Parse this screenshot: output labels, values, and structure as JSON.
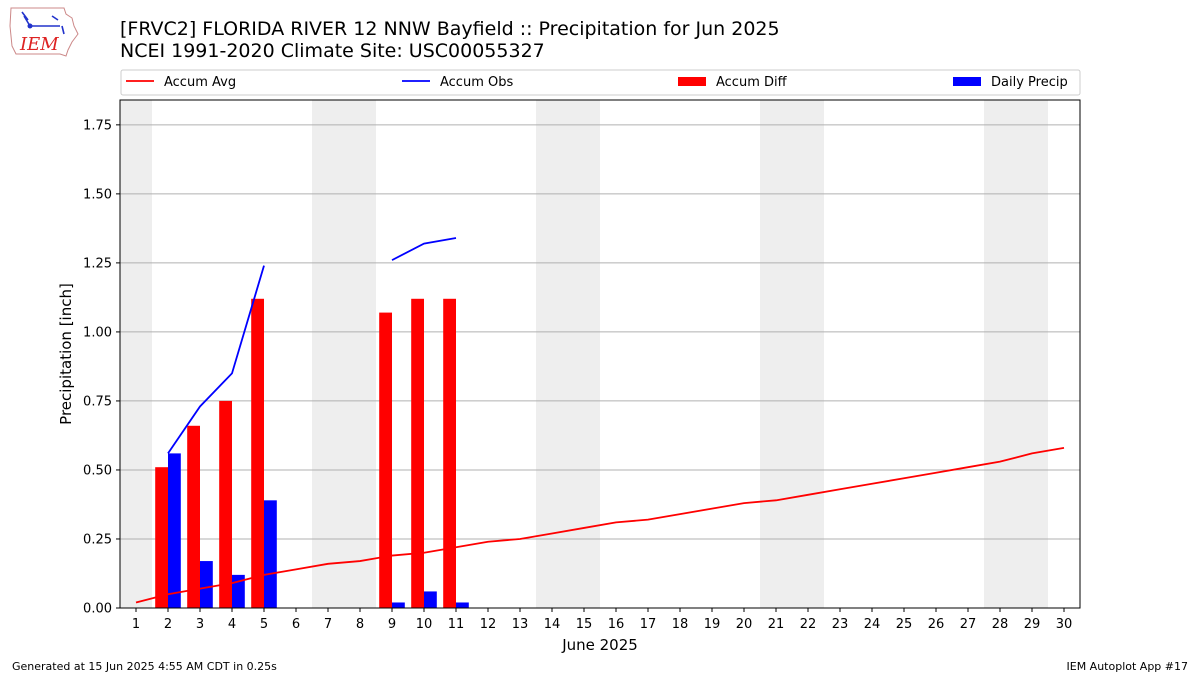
{
  "title_line1": "[FRVC2] FLORIDA RIVER 12 NNW Bayfield :: Precipitation for Jun 2025",
  "title_line2": "NCEI 1991-2020 Climate Site: USC00055327",
  "logo_text": "IEM",
  "footer_left": "Generated at 15 Jun 2025 4:55 AM CDT in 0.25s",
  "footer_right": "IEM Autoplot App #17",
  "colors": {
    "accum_avg": "#ff0000",
    "accum_obs": "#0000ff",
    "accum_diff": "#ff0000",
    "daily_precip": "#0000ff",
    "weekend_band": "#eeeeee",
    "grid": "#b0b0b0"
  },
  "chart_data": {
    "type": "bar",
    "xlabel": "June 2025",
    "ylabel": "Precipitation [inch]",
    "xlim": [
      0.5,
      30.5
    ],
    "ylim": [
      0,
      1.84
    ],
    "yticks": [
      0.0,
      0.25,
      0.5,
      0.75,
      1.0,
      1.25,
      1.5,
      1.75
    ],
    "ytick_labels": [
      "0.00",
      "0.25",
      "0.50",
      "0.75",
      "1.00",
      "1.25",
      "1.50",
      "1.75"
    ],
    "days": [
      1,
      2,
      3,
      4,
      5,
      6,
      7,
      8,
      9,
      10,
      11,
      12,
      13,
      14,
      15,
      16,
      17,
      18,
      19,
      20,
      21,
      22,
      23,
      24,
      25,
      26,
      27,
      28,
      29,
      30
    ],
    "weekend_days": [
      1,
      7,
      8,
      14,
      15,
      21,
      22,
      28,
      29
    ],
    "grid": "horizontal",
    "legend_placement": "top",
    "series": [
      {
        "name": "Accum Avg",
        "kind": "line",
        "x": [
          1,
          2,
          3,
          4,
          5,
          6,
          7,
          8,
          9,
          10,
          11,
          12,
          13,
          14,
          15,
          16,
          17,
          18,
          19,
          20,
          21,
          22,
          23,
          24,
          25,
          26,
          27,
          28,
          29,
          30
        ],
        "values": [
          0.02,
          0.05,
          0.07,
          0.09,
          0.12,
          0.14,
          0.16,
          0.17,
          0.19,
          0.2,
          0.22,
          0.24,
          0.25,
          0.27,
          0.29,
          0.31,
          0.32,
          0.34,
          0.36,
          0.38,
          0.39,
          0.41,
          0.43,
          0.45,
          0.47,
          0.49,
          0.51,
          0.53,
          0.56,
          0.58
        ]
      },
      {
        "name": "Accum Obs",
        "kind": "line",
        "segments": [
          {
            "x": [
              2,
              3,
              4,
              5
            ],
            "values": [
              0.56,
              0.73,
              0.85,
              1.24
            ]
          },
          {
            "x": [
              9,
              10,
              11
            ],
            "values": [
              1.26,
              1.32,
              1.34
            ]
          }
        ]
      },
      {
        "name": "Accum Diff",
        "kind": "bar",
        "offset": -0.2,
        "x": [
          2,
          3,
          4,
          5,
          9,
          10,
          11
        ],
        "values": [
          0.51,
          0.66,
          0.75,
          1.12,
          1.07,
          1.12,
          1.12
        ]
      },
      {
        "name": "Daily Precip",
        "kind": "bar",
        "offset": 0.2,
        "x": [
          2,
          3,
          4,
          5,
          9,
          10,
          11
        ],
        "values": [
          0.56,
          0.17,
          0.12,
          0.39,
          0.02,
          0.06,
          0.02
        ]
      }
    ]
  }
}
